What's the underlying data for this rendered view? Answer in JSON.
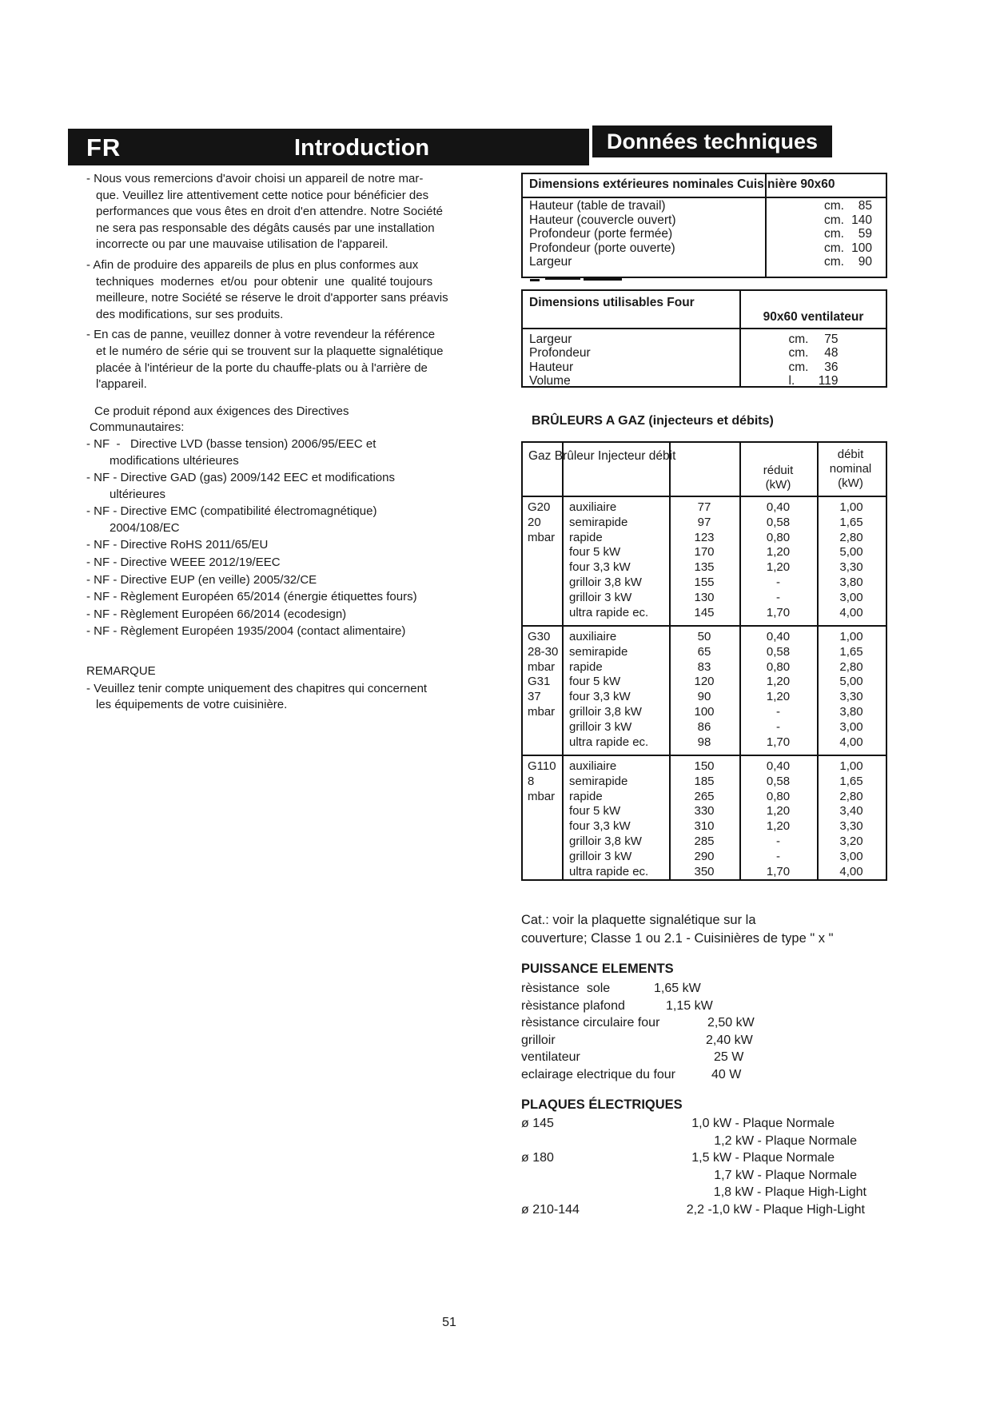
{
  "header": {
    "lang": "FR",
    "title_left": "Introduction",
    "title_right": "Données techniques"
  },
  "intro_paragraphs": [
    {
      "lines": [
        "- Nous vous remercions d'avoir choisi un appareil de notre mar-",
        "que. Veuillez lire attentivement cette notice pour bénéficier des",
        "performances que vous êtes en droit d'en attendre. Notre Société",
        "ne sera pas responsable des dégâts causés par une installation",
        "incorrecte ou par une mauvaise utilisation de l'appareil."
      ]
    },
    {
      "lines": [
        "- Afin de produire des appareils de plus en plus conformes aux",
        "techniques  modernes  et/ou  pour obtenir  une  qualité toujours",
        "meilleure, notre Société se réserve le droit d'apporter sans préavis",
        "des modifications, sur ses produits."
      ]
    },
    {
      "lines": [
        "- En cas de panne, veuillez donner à votre revendeur la référence",
        "et le numéro de série qui se trouvent sur la plaquette signalétique",
        "placée à l'intérieur de la porte du chauffe-plats ou à l'arrière de",
        "l'appareil."
      ]
    }
  ],
  "directives_intro": {
    "lines": [
      "Ce produit répond aux éxigences des Directives",
      "Communautaires:"
    ]
  },
  "directives": [
    {
      "lines": [
        "- NF  -   Directive LVD (basse tension) 2006/95/EEC et",
        "modifications ultérieures"
      ]
    },
    {
      "lines": [
        "- NF - Directive GAD (gas) 2009/142 EEC et modifications",
        "ultérieures"
      ]
    },
    {
      "lines": [
        "- NF - Directive EMC (compatibilité électromagnétique)",
        "2004/108/EC"
      ]
    },
    {
      "lines": [
        "- NF - Directive RoHS 2011/65/EU"
      ]
    },
    {
      "lines": [
        "- NF - Directive WEEE 2012/19/EEC"
      ]
    },
    {
      "lines": [
        "- NF - Directive EUP (en veille) 2005/32/CE"
      ]
    },
    {
      "lines": [
        "- NF - Règlement Européen 65/2014 (énergie étiquettes fours)"
      ]
    },
    {
      "lines": [
        "- NF - Règlement Européen 66/2014 (ecodesign)"
      ]
    },
    {
      "lines": [
        "- NF - Règlement Européen 1935/2004 (contact alimentaire)"
      ]
    }
  ],
  "remark": {
    "title": "REMARQUE",
    "lines": [
      "- Veuillez tenir compte uniquement des chapitres qui concernent",
      "les équipements de votre cuisinière."
    ]
  },
  "dim_ext": {
    "title": "Dimensions extérieures nominales Cuisinière 90x60",
    "rows": [
      {
        "label": "Hauteur (table de travail)",
        "unit": "cm.",
        "value": "85"
      },
      {
        "label": "Hauteur (couvercle ouvert)",
        "unit": "cm.",
        "value": "140"
      },
      {
        "label": "Profondeur (porte fermée)",
        "unit": "cm.",
        "value": "59"
      },
      {
        "label": "Profondeur (porte ouverte)",
        "unit": "cm.",
        "value": "100"
      },
      {
        "label": "Largeur",
        "unit": "cm.",
        "value": "90"
      }
    ]
  },
  "dim_four": {
    "title": "Dimensions utilisables Four",
    "col_header": "90x60 ventilateur",
    "rows": [
      {
        "label": "Largeur",
        "unit": "cm.",
        "value": "75"
      },
      {
        "label": "Profondeur",
        "unit": "cm.",
        "value": "48"
      },
      {
        "label": "Hauteur",
        "unit": "cm.",
        "value": "36"
      },
      {
        "label": "Volume",
        "unit": "l.",
        "value": "119"
      }
    ]
  },
  "burners": {
    "section_title": "BRÛLEURS A GAZ (injecteurs et débits)",
    "header_left": "Gaz Brûleur Injecteur débit",
    "header_reduit": [
      "réduit",
      "(kW)"
    ],
    "header_nominal": [
      "débit",
      "nominal",
      "(kW)"
    ],
    "groups": [
      {
        "gas": [
          "G20",
          "20",
          "mbar"
        ],
        "rows": [
          [
            "auxiliaire",
            "77",
            "0,40",
            "1,00"
          ],
          [
            "semirapide",
            "97",
            "0,58",
            "1,65"
          ],
          [
            "rapide",
            "123",
            "0,80",
            "2,80"
          ],
          [
            "four 5 kW",
            "170",
            "1,20",
            "5,00"
          ],
          [
            "four 3,3 kW",
            "135",
            "1,20",
            "3,30"
          ],
          [
            "grilloir 3,8 kW",
            "155",
            "-",
            "3,80"
          ],
          [
            "grilloir 3 kW",
            "130",
            "-",
            "3,00"
          ],
          [
            "ultra rapide ec.",
            "145",
            "1,70",
            "4,00"
          ]
        ]
      },
      {
        "gas": [
          "G30",
          "28-30",
          "mbar",
          "G31",
          "37",
          "mbar"
        ],
        "rows": [
          [
            "auxiliaire",
            "50",
            "0,40",
            "1,00"
          ],
          [
            "semirapide",
            "65",
            "0,58",
            "1,65"
          ],
          [
            "rapide",
            "83",
            "0,80",
            "2,80"
          ],
          [
            "four 5 kW",
            "120",
            "1,20",
            "5,00"
          ],
          [
            "four 3,3 kW",
            "90",
            "1,20",
            "3,30"
          ],
          [
            "grilloir 3,8 kW",
            "100",
            "-",
            "3,80"
          ],
          [
            "grilloir 3 kW",
            "86",
            "-",
            "3,00"
          ],
          [
            "ultra rapide ec.",
            "98",
            "1,70",
            "4,00"
          ]
        ]
      },
      {
        "gas": [
          "G110",
          "8",
          "mbar"
        ],
        "rows": [
          [
            "auxiliaire",
            "150",
            "0,40",
            "1,00"
          ],
          [
            "semirapide",
            "185",
            "0,58",
            "1,65"
          ],
          [
            "rapide",
            "265",
            "0,80",
            "2,80"
          ],
          [
            "four 5 kW",
            "330",
            "1,20",
            "3,40"
          ],
          [
            "four 3,3 kW",
            "310",
            "1,20",
            "3,30"
          ],
          [
            "grilloir 3,8 kW",
            "285",
            "-",
            "3,20"
          ],
          [
            "grilloir 3 kW",
            "290",
            "-",
            "3,00"
          ],
          [
            "ultra rapide ec.",
            "350",
            "1,70",
            "4,00"
          ]
        ]
      }
    ]
  },
  "cat_note": {
    "lines": [
      "Cat.: voir la plaquette signalétique sur la",
      "couverture; Classe 1 ou 2.1 - Cuisinières de type \" x \""
    ]
  },
  "puissance": {
    "title": "PUISSANCE ELEMENTS",
    "rows": [
      {
        "label": "rèsistance  sole",
        "value": "1,65 kW"
      },
      {
        "label": "rèsistance plafond",
        "value": "1,15 kW"
      },
      {
        "label": "rèsistance circulaire four",
        "value": "2,50 kW"
      },
      {
        "label": "grilloir",
        "value": "2,40 kW"
      },
      {
        "label": "ventilateur",
        "value": "25 W"
      },
      {
        "label": "eclairage electrique du four",
        "value": "40 W"
      }
    ]
  },
  "plaques": {
    "title": "PLAQUES ÉLECTRIQUES",
    "rows": [
      {
        "label": "ø 145",
        "value": "1,0 kW - Plaque Normale"
      },
      {
        "label": "",
        "value": "1,2 kW - Plaque Normale"
      },
      {
        "label": "ø 180",
        "value": "1,5 kW - Plaque Normale"
      },
      {
        "label": "",
        "value": "1,7 kW - Plaque Normale"
      },
      {
        "label": "",
        "value": "1,8 kW - Plaque High-Light"
      },
      {
        "label": "ø 210-144",
        "value": "2,2 -1,0 kW - Plaque High-Light"
      }
    ]
  },
  "page_number": "51"
}
